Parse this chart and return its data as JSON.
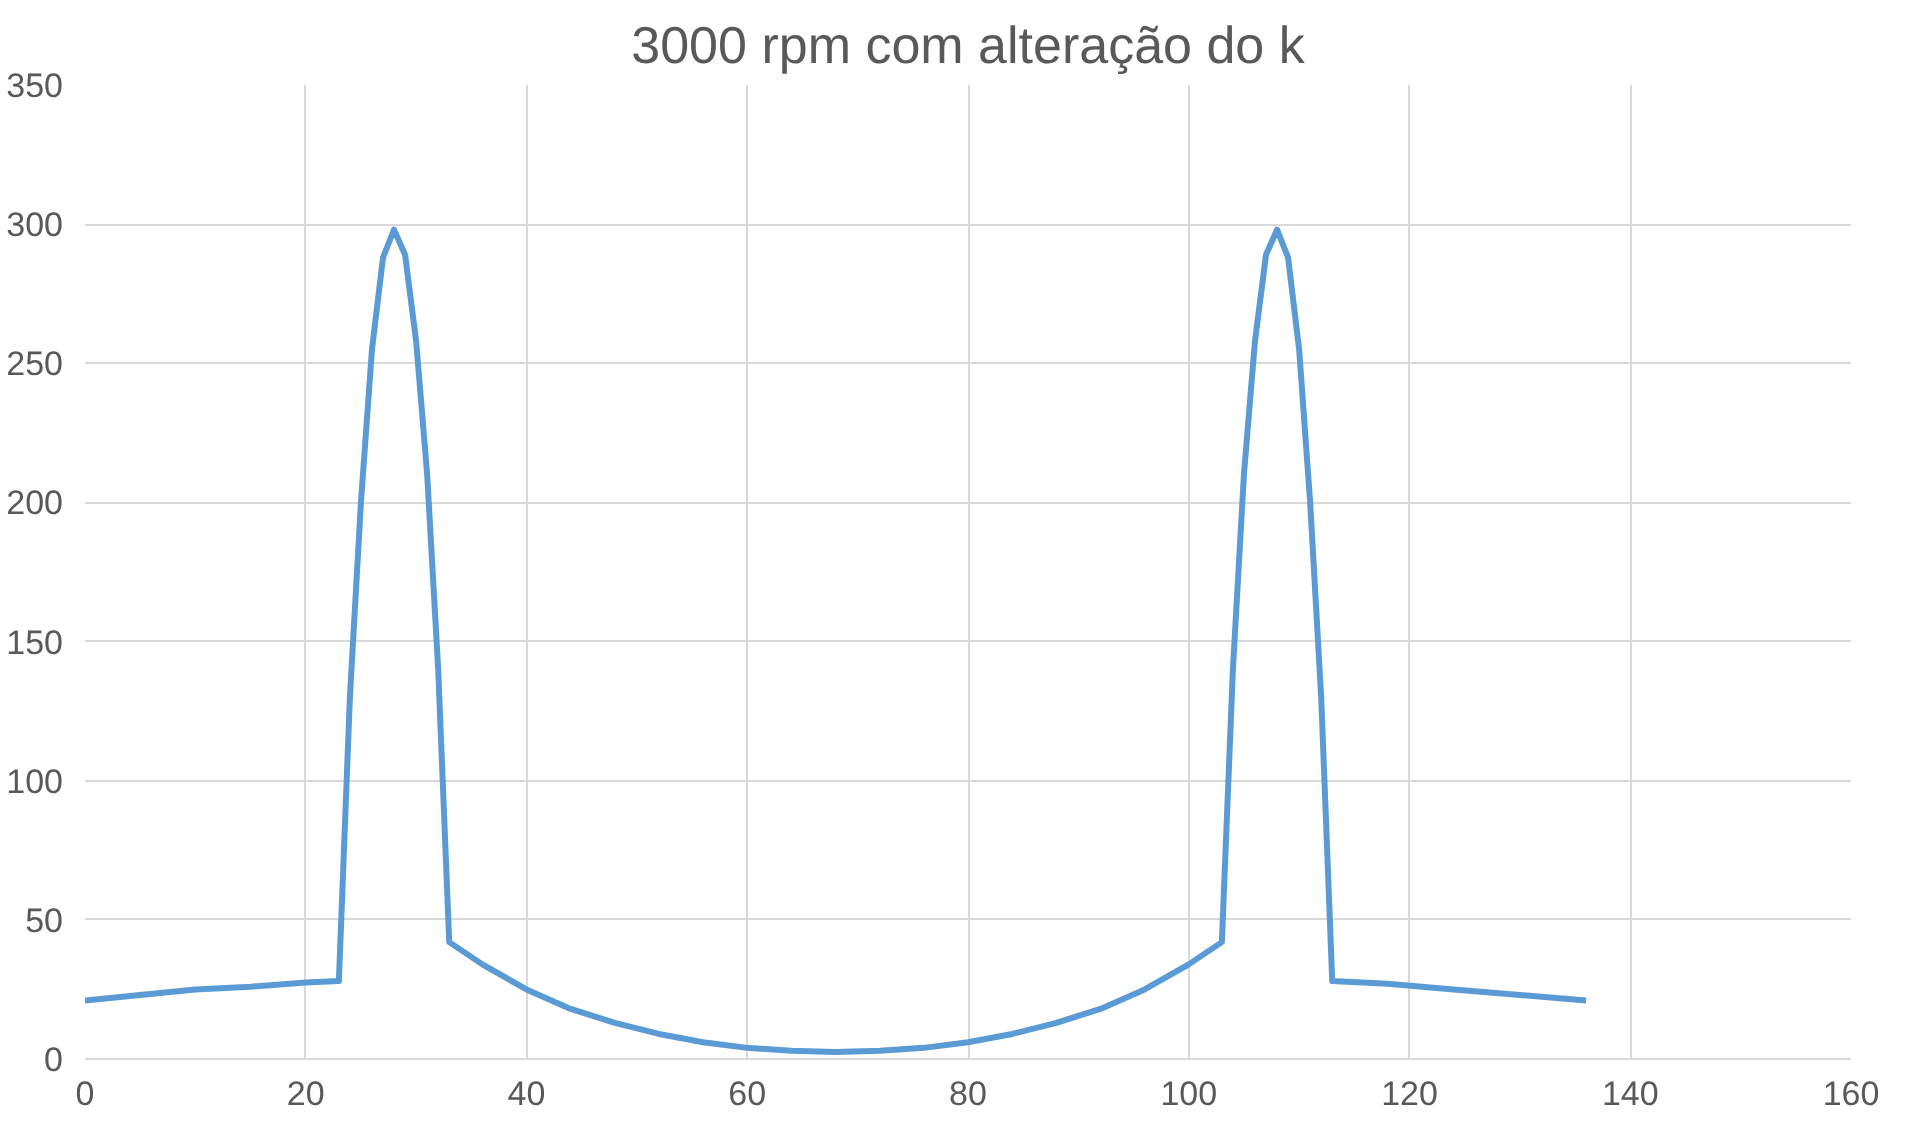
{
  "chart_data": {
    "type": "line",
    "title": "3000 rpm com alteração do k",
    "x": [
      0,
      5,
      10,
      15,
      20,
      23,
      24,
      25,
      26,
      27,
      28,
      29,
      30,
      31,
      32,
      33,
      36,
      40,
      44,
      48,
      52,
      56,
      60,
      64,
      68,
      72,
      76,
      80,
      84,
      88,
      92,
      96,
      100,
      103,
      104,
      105,
      106,
      107,
      108,
      109,
      110,
      111,
      112,
      113,
      118,
      124,
      130,
      136
    ],
    "series": [
      {
        "color": "#5b9bd5",
        "values": [
          21,
          23,
          25,
          26,
          27.5,
          28,
          130,
          200,
          255,
          288,
          298,
          289,
          258,
          210,
          140,
          42,
          34,
          25,
          18,
          13,
          9,
          6,
          4,
          3,
          2.5,
          3,
          4,
          6,
          9,
          13,
          18,
          25,
          34,
          42,
          140,
          210,
          258,
          289,
          298,
          288,
          255,
          200,
          130,
          28,
          27,
          25,
          23,
          21
        ]
      }
    ],
    "xlim": [
      0,
      160
    ],
    "xticks": [
      0,
      20,
      40,
      60,
      80,
      100,
      120,
      140,
      160
    ],
    "ylim": [
      0,
      350
    ],
    "yticks": [
      0,
      50,
      100,
      150,
      200,
      250,
      300,
      350
    ],
    "grid": true,
    "marker": "none",
    "line_style": "solid"
  }
}
